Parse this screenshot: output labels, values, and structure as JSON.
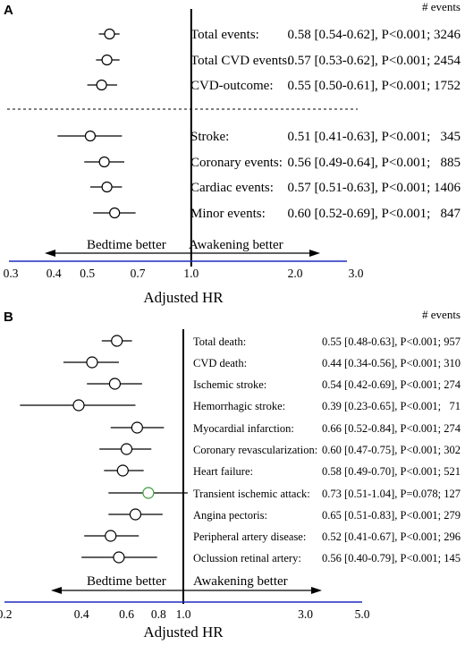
{
  "chart_data": [
    {
      "type": "forest",
      "panel_label": "A",
      "count_header": "# events",
      "xlabel": "Adjusted HR",
      "scale": "log",
      "xlim": [
        0.3,
        3.0
      ],
      "ticks": [
        "0.3",
        "0.4",
        "0.5",
        "0.7",
        "1.0",
        "2.0",
        "3.0"
      ],
      "arrow_left_label": "Bedtime better",
      "arrow_right_label": "Awakening better",
      "groups": [
        {
          "rows": [
            {
              "label": "Total events:",
              "hr": 0.58,
              "lo": 0.54,
              "hi": 0.62,
              "stat": "0.58 [0.54-0.62], P<0.001; 3246"
            },
            {
              "label": "Total CVD events:",
              "hr": 0.57,
              "lo": 0.53,
              "hi": 0.62,
              "stat": "0.57 [0.53-0.62], P<0.001; 2454"
            },
            {
              "label": "CVD-outcome:",
              "hr": 0.55,
              "lo": 0.5,
              "hi": 0.61,
              "stat": "0.55 [0.50-0.61], P<0.001; 1752"
            }
          ]
        },
        {
          "rows": [
            {
              "label": "Stroke:",
              "hr": 0.51,
              "lo": 0.41,
              "hi": 0.63,
              "stat": "0.51 [0.41-0.63], P<0.001;   345"
            },
            {
              "label": "Coronary events:",
              "hr": 0.56,
              "lo": 0.49,
              "hi": 0.64,
              "stat": "0.56 [0.49-0.64], P<0.001;   885"
            },
            {
              "label": "Cardiac events:",
              "hr": 0.57,
              "lo": 0.51,
              "hi": 0.63,
              "stat": "0.57 [0.51-0.63], P<0.001; 1406"
            },
            {
              "label": "Minor events:",
              "hr": 0.6,
              "lo": 0.52,
              "hi": 0.69,
              "stat": "0.60 [0.52-0.69], P<0.001;   847"
            }
          ]
        }
      ]
    },
    {
      "type": "forest",
      "panel_label": "B",
      "count_header": "# events",
      "xlabel": "Adjusted HR",
      "scale": "log",
      "xlim": [
        0.2,
        5.0
      ],
      "ticks": [
        "0.2",
        "0.4",
        "0.6",
        "0.8",
        "1.0",
        "3.0",
        "5.0"
      ],
      "arrow_left_label": "Bedtime better",
      "arrow_right_label": "Awakening better",
      "highlight_color": "#3a9a3a",
      "rows": [
        {
          "label": "Total death:",
          "hr": 0.55,
          "lo": 0.48,
          "hi": 0.63,
          "stat": "0.55 [0.48-0.63], P<0.001; 957"
        },
        {
          "label": "CVD death:",
          "hr": 0.44,
          "lo": 0.34,
          "hi": 0.56,
          "stat": "0.44 [0.34-0.56], P<0.001; 310"
        },
        {
          "label": "Ischemic stroke:",
          "hr": 0.54,
          "lo": 0.42,
          "hi": 0.69,
          "stat": "0.54 [0.42-0.69], P<0.001; 274"
        },
        {
          "label": "Hemorrhagic stroke:",
          "hr": 0.39,
          "lo": 0.23,
          "hi": 0.65,
          "stat": "0.39 [0.23-0.65], P<0.001;   71"
        },
        {
          "label": "Myocardial infarction:",
          "hr": 0.66,
          "lo": 0.52,
          "hi": 0.84,
          "stat": "0.66 [0.52-0.84], P<0.001; 274"
        },
        {
          "label": "Coronary revascularization:",
          "hr": 0.6,
          "lo": 0.47,
          "hi": 0.75,
          "stat": "0.60 [0.47-0.75], P<0.001; 302"
        },
        {
          "label": "Heart failure:",
          "hr": 0.58,
          "lo": 0.49,
          "hi": 0.7,
          "stat": "0.58 [0.49-0.70], P<0.001; 521"
        },
        {
          "label": "Transient ischemic attack:",
          "hr": 0.73,
          "lo": 0.51,
          "hi": 1.04,
          "stat": "0.73 [0.51-1.04], P=0.078; 127",
          "highlight": true
        },
        {
          "label": "Angina pectoris:",
          "hr": 0.65,
          "lo": 0.51,
          "hi": 0.83,
          "stat": "0.65 [0.51-0.83], P<0.001; 279"
        },
        {
          "label": "Peripheral artery disease:",
          "hr": 0.52,
          "lo": 0.41,
          "hi": 0.67,
          "stat": "0.52 [0.41-0.67], P<0.001; 296"
        },
        {
          "label": "Oclussion retinal artery:",
          "hr": 0.56,
          "lo": 0.4,
          "hi": 0.79,
          "stat": "0.56 [0.40-0.79], P<0.001; 145"
        }
      ]
    }
  ],
  "colors": {
    "axis": "#1f2bbd",
    "ink": "#000000"
  }
}
